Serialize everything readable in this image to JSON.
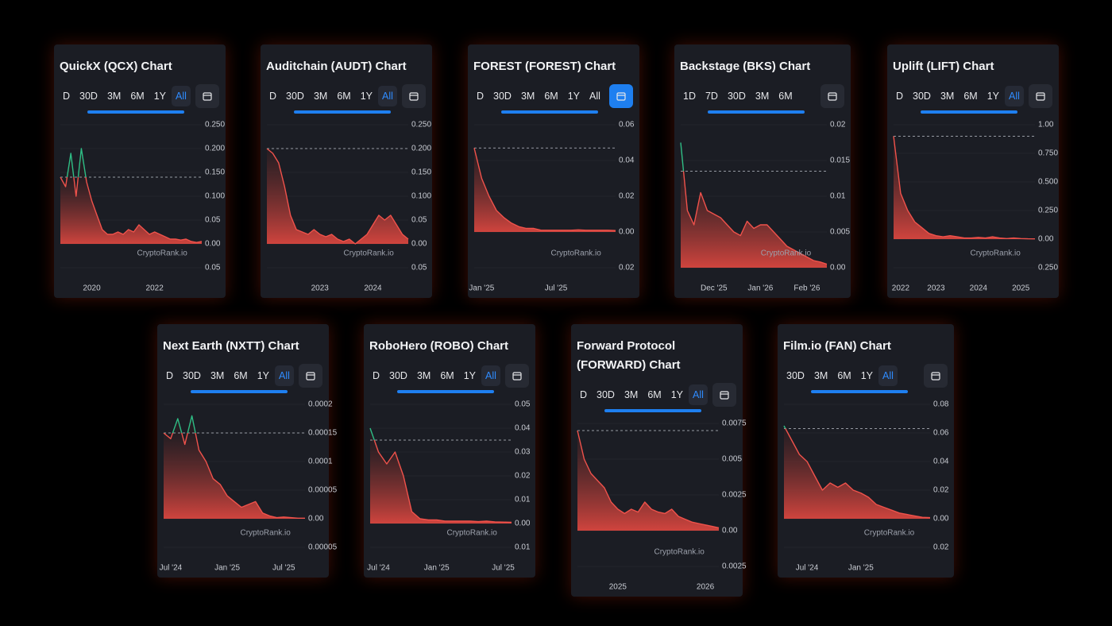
{
  "cards": [
    {
      "title": "QuickX (QCX) Chart",
      "tabs": [
        "D",
        "30D",
        "3M",
        "6M",
        "1Y",
        "All"
      ],
      "active_tab": 5,
      "ylim": [
        -0.05,
        0.25
      ],
      "yticks": [
        {
          "value": 0.25,
          "label": "0.250"
        },
        {
          "value": 0.2,
          "label": "0.200"
        },
        {
          "value": 0.15,
          "label": "0.150"
        },
        {
          "value": 0.1,
          "label": "0.100"
        },
        0.05,
        {
          "value": 0,
          "label": "0.00"
        },
        {
          "value": -0.05,
          "label": "0.05"
        }
      ],
      "reference": 0.14,
      "values": [
        0.14,
        0.12,
        0.19,
        0.1,
        0.2,
        0.13,
        0.09,
        0.06,
        0.03,
        0.02,
        0.02,
        0.025,
        0.02,
        0.03,
        0.025,
        0.04,
        0.03,
        0.02,
        0.025,
        0.02,
        0.015,
        0.01,
        0.01,
        0.008,
        0.01,
        0.005,
        0.003,
        0.005
      ],
      "xticks": [
        {
          "value": 6,
          "label": "2020"
        },
        {
          "value": 18,
          "label": "2022"
        }
      ],
      "watermark": "CryptoRank.io"
    },
    {
      "title": "Auditchain (AUDT) Chart",
      "tabs": [
        "D",
        "30D",
        "3M",
        "6M",
        "1Y",
        "All"
      ],
      "active_tab": 5,
      "ylim": [
        -0.05,
        0.25
      ],
      "yticks": [
        {
          "value": 0.25,
          "label": "0.250"
        },
        {
          "value": 0.2,
          "label": "0.200"
        },
        {
          "value": 0.15,
          "label": "0.150"
        },
        {
          "value": 0.1,
          "label": "0.100"
        },
        0.05,
        {
          "value": 0,
          "label": "0.00"
        },
        {
          "value": -0.05,
          "label": "0.05"
        }
      ],
      "reference": 0.2,
      "values": [
        0.2,
        0.19,
        0.17,
        0.12,
        0.06,
        0.03,
        0.025,
        0.02,
        0.03,
        0.02,
        0.015,
        0.02,
        0.01,
        0.005,
        0.01,
        0.0,
        0.01,
        0.02,
        0.04,
        0.06,
        0.05,
        0.06,
        0.04,
        0.02,
        0.01
      ],
      "xticks": [
        {
          "value": 9,
          "label": "2023"
        },
        {
          "value": 18,
          "label": "2024"
        }
      ],
      "watermark": "CryptoRank.io"
    },
    {
      "title": "FOREST (FOREST) Chart",
      "tabs": [
        "D",
        "30D",
        "3M",
        "6M",
        "1Y",
        "All"
      ],
      "active_tab": null,
      "calendar_active": true,
      "ylim": [
        -0.02,
        0.06
      ],
      "yticks": [
        0.06,
        0.04,
        0.02,
        {
          "value": 0,
          "label": "0.00"
        },
        {
          "value": -0.02,
          "label": "0.02"
        }
      ],
      "reference": 0.047,
      "values": [
        0.047,
        0.03,
        0.02,
        0.012,
        0.008,
        0.005,
        0.003,
        0.002,
        0.002,
        0.001,
        0.001,
        0.001,
        0.001,
        0.001,
        0.0012,
        0.001,
        0.001,
        0.001,
        0.001,
        0.0008
      ],
      "xticks": [
        {
          "value": 1,
          "label": "Jan '25"
        },
        {
          "value": 11,
          "label": "Jul '25"
        }
      ],
      "watermark": "CryptoRank.io"
    },
    {
      "title": "Backstage (BKS) Chart",
      "tabs": [
        "1D",
        "7D",
        "30D",
        "3M",
        "6M"
      ],
      "active_tab": null,
      "ylim": [
        0,
        0.02
      ],
      "yticks": [
        0.02,
        0.015,
        0.01,
        0.005,
        {
          "value": 0,
          "label": "0.00"
        }
      ],
      "reference": 0.0135,
      "values": [
        0.0175,
        0.008,
        0.006,
        0.0105,
        0.008,
        0.0075,
        0.007,
        0.006,
        0.005,
        0.0045,
        0.0065,
        0.0055,
        0.006,
        0.006,
        0.005,
        0.004,
        0.003,
        0.0025,
        0.002,
        0.0015,
        0.001,
        0.0008,
        0.0005
      ],
      "xticks": [
        {
          "value": 5,
          "label": "Dec '25"
        },
        {
          "value": 12,
          "label": "Jan '26"
        },
        {
          "value": 19,
          "label": "Feb '26"
        }
      ],
      "watermark": "CryptoRank.io"
    },
    {
      "title": "Uplift (LIFT) Chart",
      "tabs": [
        "D",
        "30D",
        "3M",
        "6M",
        "1Y",
        "All"
      ],
      "active_tab": 5,
      "ylim": [
        -0.25,
        1
      ],
      "yticks": [
        {
          "value": 1,
          "label": "1.00"
        },
        {
          "value": 0.75,
          "label": "0.750"
        },
        {
          "value": 0.5,
          "label": "0.500"
        },
        {
          "value": 0.25,
          "label": "0.250"
        },
        {
          "value": 0,
          "label": "0.00"
        },
        {
          "value": -0.25,
          "label": "0.250"
        }
      ],
      "reference": 0.9,
      "values": [
        0.9,
        0.4,
        0.25,
        0.15,
        0.1,
        0.05,
        0.03,
        0.02,
        0.03,
        0.02,
        0.01,
        0.01,
        0.015,
        0.01,
        0.02,
        0.01,
        0.005,
        0.01,
        0.005,
        0.003,
        0.002
      ],
      "xticks": [
        {
          "value": 1,
          "label": "2022"
        },
        {
          "value": 6,
          "label": "2023"
        },
        {
          "value": 12,
          "label": "2024"
        },
        {
          "value": 18,
          "label": "2025"
        }
      ],
      "watermark": "CryptoRank.io"
    },
    {
      "title": "Next Earth (NXTT) Chart",
      "tabs": [
        "D",
        "30D",
        "3M",
        "6M",
        "1Y",
        "All"
      ],
      "active_tab": 5,
      "ylim": [
        -5e-05,
        0.0002
      ],
      "yticks": [
        0.0002,
        0.00015,
        0.0001,
        5e-05,
        {
          "value": 0,
          "label": "0.00"
        },
        {
          "value": -5e-05,
          "label": "0.00005"
        }
      ],
      "reference": 0.00015,
      "values": [
        0.00015,
        0.00014,
        0.000175,
        0.00013,
        0.00018,
        0.00012,
        0.0001,
        7e-05,
        6e-05,
        4e-05,
        3e-05,
        2e-05,
        2.5e-05,
        3e-05,
        1e-05,
        5e-06,
        2e-06,
        3e-06,
        2e-06,
        1e-06,
        1e-06
      ],
      "xticks": [
        {
          "value": 1,
          "label": "Jul '24"
        },
        {
          "value": 9,
          "label": "Jan '25"
        },
        {
          "value": 17,
          "label": "Jul '25"
        }
      ],
      "watermark": "CryptoRank.io"
    },
    {
      "title": "RoboHero (ROBO) Chart",
      "tabs": [
        "D",
        "30D",
        "3M",
        "6M",
        "1Y",
        "All"
      ],
      "active_tab": 5,
      "ylim": [
        -0.01,
        0.05
      ],
      "yticks": [
        0.05,
        0.04,
        0.03,
        0.02,
        0.01,
        {
          "value": 0,
          "label": "0.00"
        },
        {
          "value": -0.01,
          "label": "0.01"
        }
      ],
      "reference": 0.035,
      "values": [
        0.04,
        0.03,
        0.025,
        0.03,
        0.02,
        0.005,
        0.002,
        0.0015,
        0.0015,
        0.001,
        0.001,
        0.001,
        0.001,
        0.0008,
        0.001,
        0.0007,
        0.0006,
        0.0005
      ],
      "xticks": [
        {
          "value": 1,
          "label": "Jul '24"
        },
        {
          "value": 8,
          "label": "Jan '25"
        },
        {
          "value": 16,
          "label": "Jul '25"
        }
      ],
      "watermark": "CryptoRank.io"
    },
    {
      "title": "Forward Protocol (FORWARD) Chart",
      "tabs": [
        "D",
        "30D",
        "3M",
        "6M",
        "1Y",
        "All"
      ],
      "active_tab": 5,
      "ylim": [
        -0.0025,
        0.0075
      ],
      "yticks": [
        0.0075,
        0.005,
        0.0025,
        {
          "value": 0,
          "label": "0.00"
        },
        {
          "value": -0.0025,
          "label": "0.0025"
        }
      ],
      "reference": 0.007,
      "values": [
        0.007,
        0.005,
        0.004,
        0.0035,
        0.003,
        0.002,
        0.0015,
        0.0012,
        0.0015,
        0.0013,
        0.002,
        0.0015,
        0.0013,
        0.0012,
        0.0015,
        0.001,
        0.0008,
        0.0006,
        0.0005,
        0.0004,
        0.0003,
        0.0002
      ],
      "xticks": [
        {
          "value": 6,
          "label": "2025"
        },
        {
          "value": 19,
          "label": "2026"
        }
      ],
      "watermark": "CryptoRank.io"
    },
    {
      "title": "Film.io (FAN) Chart",
      "tabs": [
        "30D",
        "3M",
        "6M",
        "1Y",
        "All"
      ],
      "active_tab": 4,
      "ylim": [
        -0.02,
        0.08
      ],
      "yticks": [
        0.08,
        0.06,
        0.04,
        0.02,
        {
          "value": 0,
          "label": "0.00"
        },
        {
          "value": -0.02,
          "label": "0.02"
        }
      ],
      "reference": 0.063,
      "values": [
        0.065,
        0.055,
        0.045,
        0.04,
        0.03,
        0.02,
        0.025,
        0.022,
        0.025,
        0.02,
        0.018,
        0.015,
        0.01,
        0.008,
        0.006,
        0.004,
        0.003,
        0.002,
        0.001,
        0.0008
      ],
      "xticks": [
        {
          "value": 3,
          "label": "Jul '24"
        },
        {
          "value": 10,
          "label": "Jan '25"
        }
      ],
      "watermark": "CryptoRank.io"
    }
  ]
}
